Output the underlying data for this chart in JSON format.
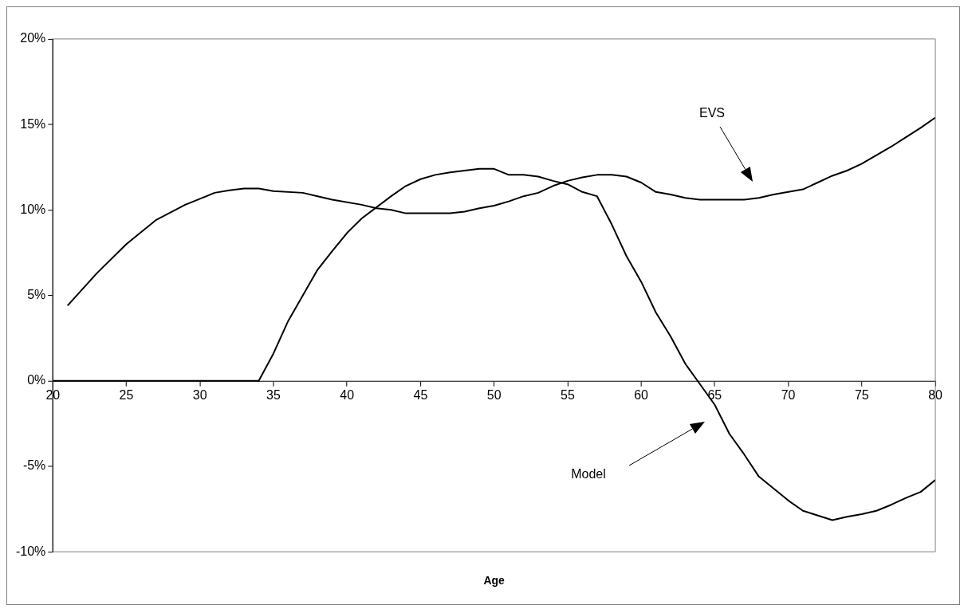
{
  "chart_data": {
    "type": "line",
    "xlabel": "Age",
    "xlim": [
      20,
      80
    ],
    "xticks": [
      20,
      25,
      30,
      35,
      40,
      45,
      50,
      55,
      60,
      65,
      70,
      75,
      80
    ],
    "ylim": [
      -10,
      20
    ],
    "yticks": [
      {
        "value": -10,
        "label": "-10%"
      },
      {
        "value": -5,
        "label": "-5%"
      },
      {
        "value": 0,
        "label": "0%"
      },
      {
        "value": 5,
        "label": "5%"
      },
      {
        "value": 10,
        "label": "10%"
      },
      {
        "value": 15,
        "label": "15%"
      },
      {
        "value": 20,
        "label": "20%"
      }
    ],
    "grid": false,
    "legend": false,
    "marker": "none",
    "line_style": "solid",
    "series": [
      {
        "color": "#000000",
        "x": [
          21,
          23,
          25,
          27,
          29,
          31,
          32,
          33,
          34,
          35,
          37,
          38,
          39,
          41,
          42,
          43,
          44,
          47,
          48,
          49,
          50,
          51,
          52,
          53,
          54,
          55,
          56,
          57,
          58,
          59,
          60,
          61,
          62,
          63,
          64,
          67,
          68,
          69,
          70,
          71,
          72,
          73,
          74,
          75,
          76,
          77,
          78,
          79,
          80
        ],
        "values": [
          4.4,
          6.3,
          8.0,
          9.4,
          10.3,
          11.0,
          11.15,
          11.25,
          11.25,
          11.1,
          11.0,
          10.8,
          10.6,
          10.3,
          10.1,
          10.0,
          9.8,
          9.8,
          9.9,
          10.1,
          10.25,
          10.5,
          10.8,
          11.0,
          11.4,
          11.7,
          11.9,
          12.05,
          12.05,
          11.95,
          11.6,
          11.05,
          10.9,
          10.7,
          10.6,
          10.6,
          10.7,
          10.9,
          11.05,
          11.2,
          11.6,
          12.0,
          12.3,
          12.7,
          13.2,
          13.7,
          14.25,
          14.8,
          15.4
        ]
      },
      {
        "color": "#000000",
        "x": [
          20,
          34,
          35,
          36,
          37,
          38,
          39,
          40,
          41,
          42,
          43,
          44,
          45,
          46,
          47,
          48,
          49,
          50,
          51,
          52,
          53,
          54,
          55,
          56,
          57,
          58,
          59,
          60,
          61,
          62,
          63,
          64,
          65,
          66,
          67,
          68,
          69,
          70,
          71,
          73,
          74,
          75,
          76,
          77,
          78,
          79,
          80
        ],
        "values": [
          0,
          0,
          1.6,
          3.5,
          5.0,
          6.5,
          7.6,
          8.65,
          9.5,
          10.15,
          10.8,
          11.4,
          11.8,
          12.05,
          12.2,
          12.3,
          12.4,
          12.4,
          12.05,
          12.05,
          11.95,
          11.7,
          11.5,
          11.05,
          10.8,
          9.15,
          7.3,
          5.8,
          4.0,
          2.6,
          1.0,
          -0.2,
          -1.4,
          -3.1,
          -4.3,
          -5.6,
          -6.3,
          -7.0,
          -7.6,
          -8.15,
          -7.95,
          -7.8,
          -7.6,
          -7.25,
          -6.85,
          -6.5,
          -5.8
        ]
      }
    ],
    "annotations": [
      "EVS",
      "Model"
    ]
  }
}
